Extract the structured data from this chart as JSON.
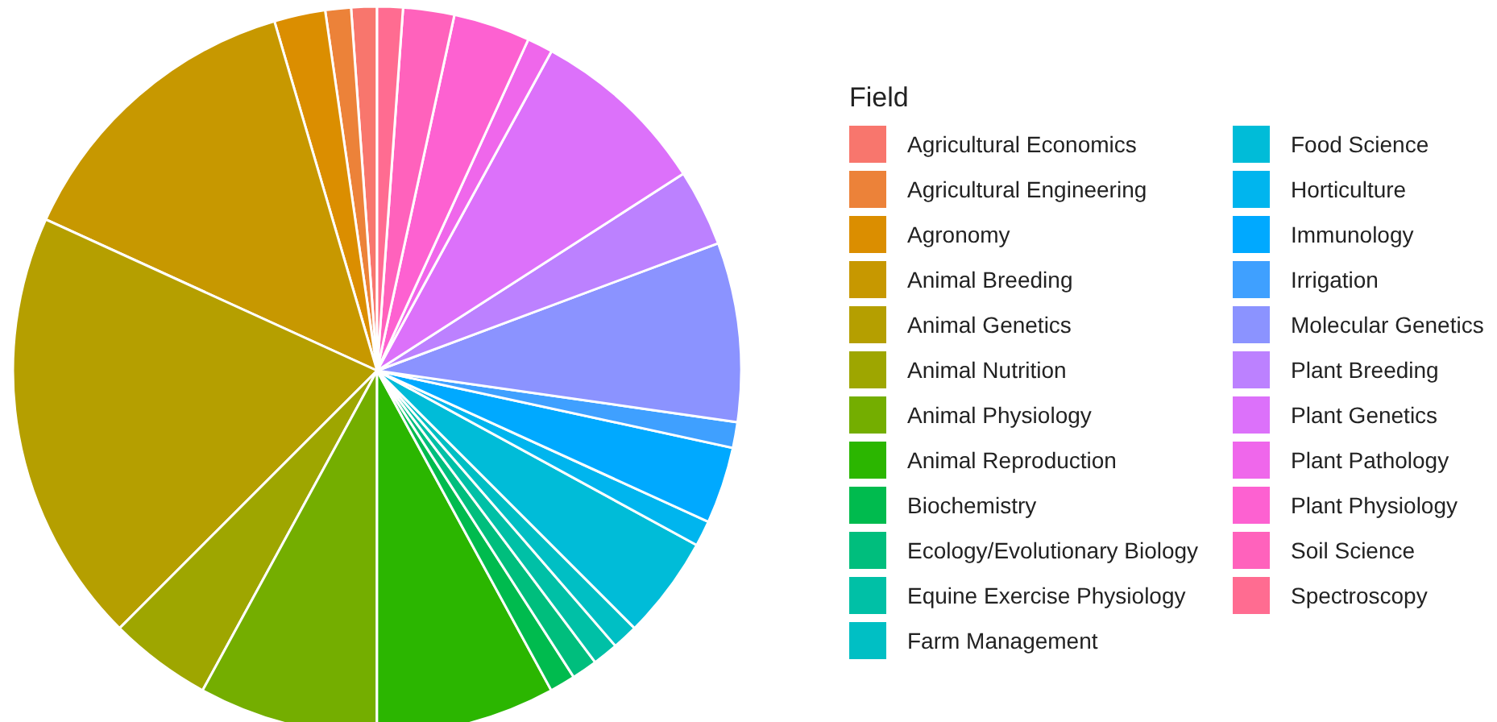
{
  "chart_data": {
    "type": "pie",
    "legend_title": "Field",
    "legend": "right",
    "categories": [
      "Agricultural Economics",
      "Agricultural Engineering",
      "Agronomy",
      "Animal Breeding",
      "Animal Genetics",
      "Animal Nutrition",
      "Animal Physiology",
      "Animal Reproduction",
      "Biochemistry",
      "Ecology/Evolutionary Biology",
      "Equine Exercise Physiology",
      "Farm Management",
      "Food Science",
      "Horticulture",
      "Immunology",
      "Irrigation",
      "Molecular Genetics",
      "Plant Breeding",
      "Plant Genetics",
      "Plant Pathology",
      "Plant Physiology",
      "Soil Science",
      "Spectroscopy"
    ],
    "values": [
      1.14,
      1.14,
      2.27,
      13.64,
      19.32,
      4.55,
      7.95,
      7.95,
      1.14,
      1.14,
      1.14,
      1.14,
      4.55,
      1.14,
      3.41,
      1.14,
      7.95,
      3.41,
      7.95,
      1.14,
      3.41,
      2.27,
      1.14
    ],
    "colors": [
      "#f8766d",
      "#ec8239",
      "#db8e00",
      "#c79800",
      "#b59f00",
      "#9ea600",
      "#74ae00",
      "#2bb600",
      "#00bb4e",
      "#00be7d",
      "#00c0a6",
      "#00bfc4",
      "#00bcd8",
      "#00b5ee",
      "#00a9ff",
      "#3fa0ff",
      "#8b93ff",
      "#bc81ff",
      "#dc71fa",
      "#ef67eb",
      "#fd61d1",
      "#ff62bc",
      "#ff6c91"
    ]
  }
}
